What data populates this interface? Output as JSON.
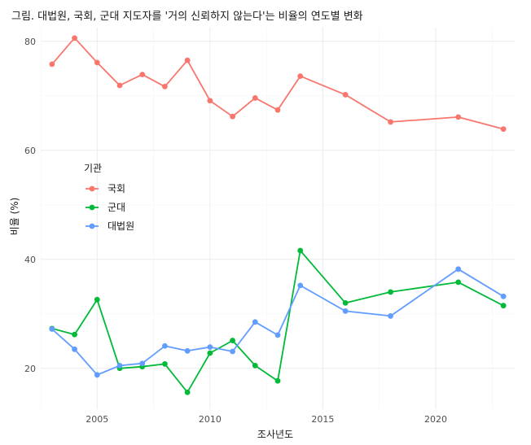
{
  "chart_data": {
    "type": "line",
    "title": "그림. 대법원, 국회, 군대 지도자를 '거의 신뢰하지 않는다'는 비율의 연도별 변화",
    "xlabel": "조사년도",
    "ylabel": "비율 (%)",
    "xlim": [
      2002.5,
      2023.5
    ],
    "ylim": [
      12.5,
      82.5
    ],
    "x_ticks": [
      2005,
      2010,
      2015,
      2020
    ],
    "y_ticks": [
      20,
      40,
      60,
      80
    ],
    "grid": true,
    "legend": {
      "title": "기관",
      "placement": "left-middle",
      "entries": [
        "국회",
        "군대",
        "대법원"
      ]
    },
    "series": [
      {
        "name": "국회",
        "color": "#F8766D",
        "x": [
          2003,
          2004,
          2005,
          2006,
          2007,
          2008,
          2009,
          2010,
          2011,
          2012,
          2013,
          2014,
          2016,
          2018,
          2021,
          2023
        ],
        "values": [
          75.8,
          80.6,
          76.1,
          71.9,
          73.9,
          71.7,
          76.5,
          69.1,
          66.2,
          69.6,
          67.4,
          73.6,
          70.2,
          65.2,
          66.1,
          63.9
        ]
      },
      {
        "name": "군대",
        "color": "#00BA38",
        "x": [
          2003,
          2004,
          2005,
          2006,
          2007,
          2008,
          2009,
          2010,
          2011,
          2012,
          2013,
          2014,
          2016,
          2018,
          2021,
          2023
        ],
        "values": [
          27.3,
          26.2,
          32.6,
          20.0,
          20.3,
          20.8,
          15.6,
          22.8,
          25.1,
          20.5,
          17.7,
          41.6,
          32.0,
          34.0,
          35.8,
          31.5
        ]
      },
      {
        "name": "대법원",
        "color": "#619CFF",
        "x": [
          2003,
          2004,
          2005,
          2006,
          2007,
          2008,
          2009,
          2010,
          2011,
          2012,
          2013,
          2014,
          2016,
          2018,
          2021,
          2023
        ],
        "values": [
          27.2,
          23.5,
          18.8,
          20.5,
          20.9,
          24.1,
          23.2,
          23.9,
          23.1,
          28.5,
          26.1,
          35.2,
          30.5,
          29.6,
          38.2,
          33.2
        ]
      }
    ]
  }
}
